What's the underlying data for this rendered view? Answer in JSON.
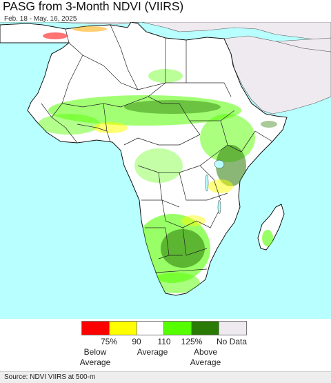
{
  "title": "PASG from 3-Month NDVI (VIIRS)",
  "subtitle": "Feb. 18 - May. 16, 2025",
  "colors": {
    "ocean": "#b8ffff",
    "land_average": "#ffffff",
    "other_land": "#eeeaf0",
    "border": "#222222",
    "below75": "#ff0000",
    "below90": "#ffff00",
    "average": "#ffffff",
    "above125": "#55ff00",
    "above": "#2a7a06",
    "nodata": "#eeeaf0"
  },
  "legend": {
    "swatches": [
      {
        "name": "below-75",
        "color": "#ff0000"
      },
      {
        "name": "below-90",
        "color": "#ffff00"
      },
      {
        "name": "average",
        "color": "#ffffff"
      },
      {
        "name": "above-125",
        "color": "#55ff00"
      },
      {
        "name": "above",
        "color": "#2a7a06"
      },
      {
        "name": "no-data",
        "color": "#eeeaf0"
      }
    ],
    "ticks": [
      "75%",
      "90",
      "110",
      "125%",
      "No Data"
    ],
    "below_label": [
      "Below",
      "Average"
    ],
    "average_label": "Average",
    "above_label": [
      "Above",
      "Average"
    ]
  },
  "footer": "Source: NDVI VIIRS at 500-m"
}
